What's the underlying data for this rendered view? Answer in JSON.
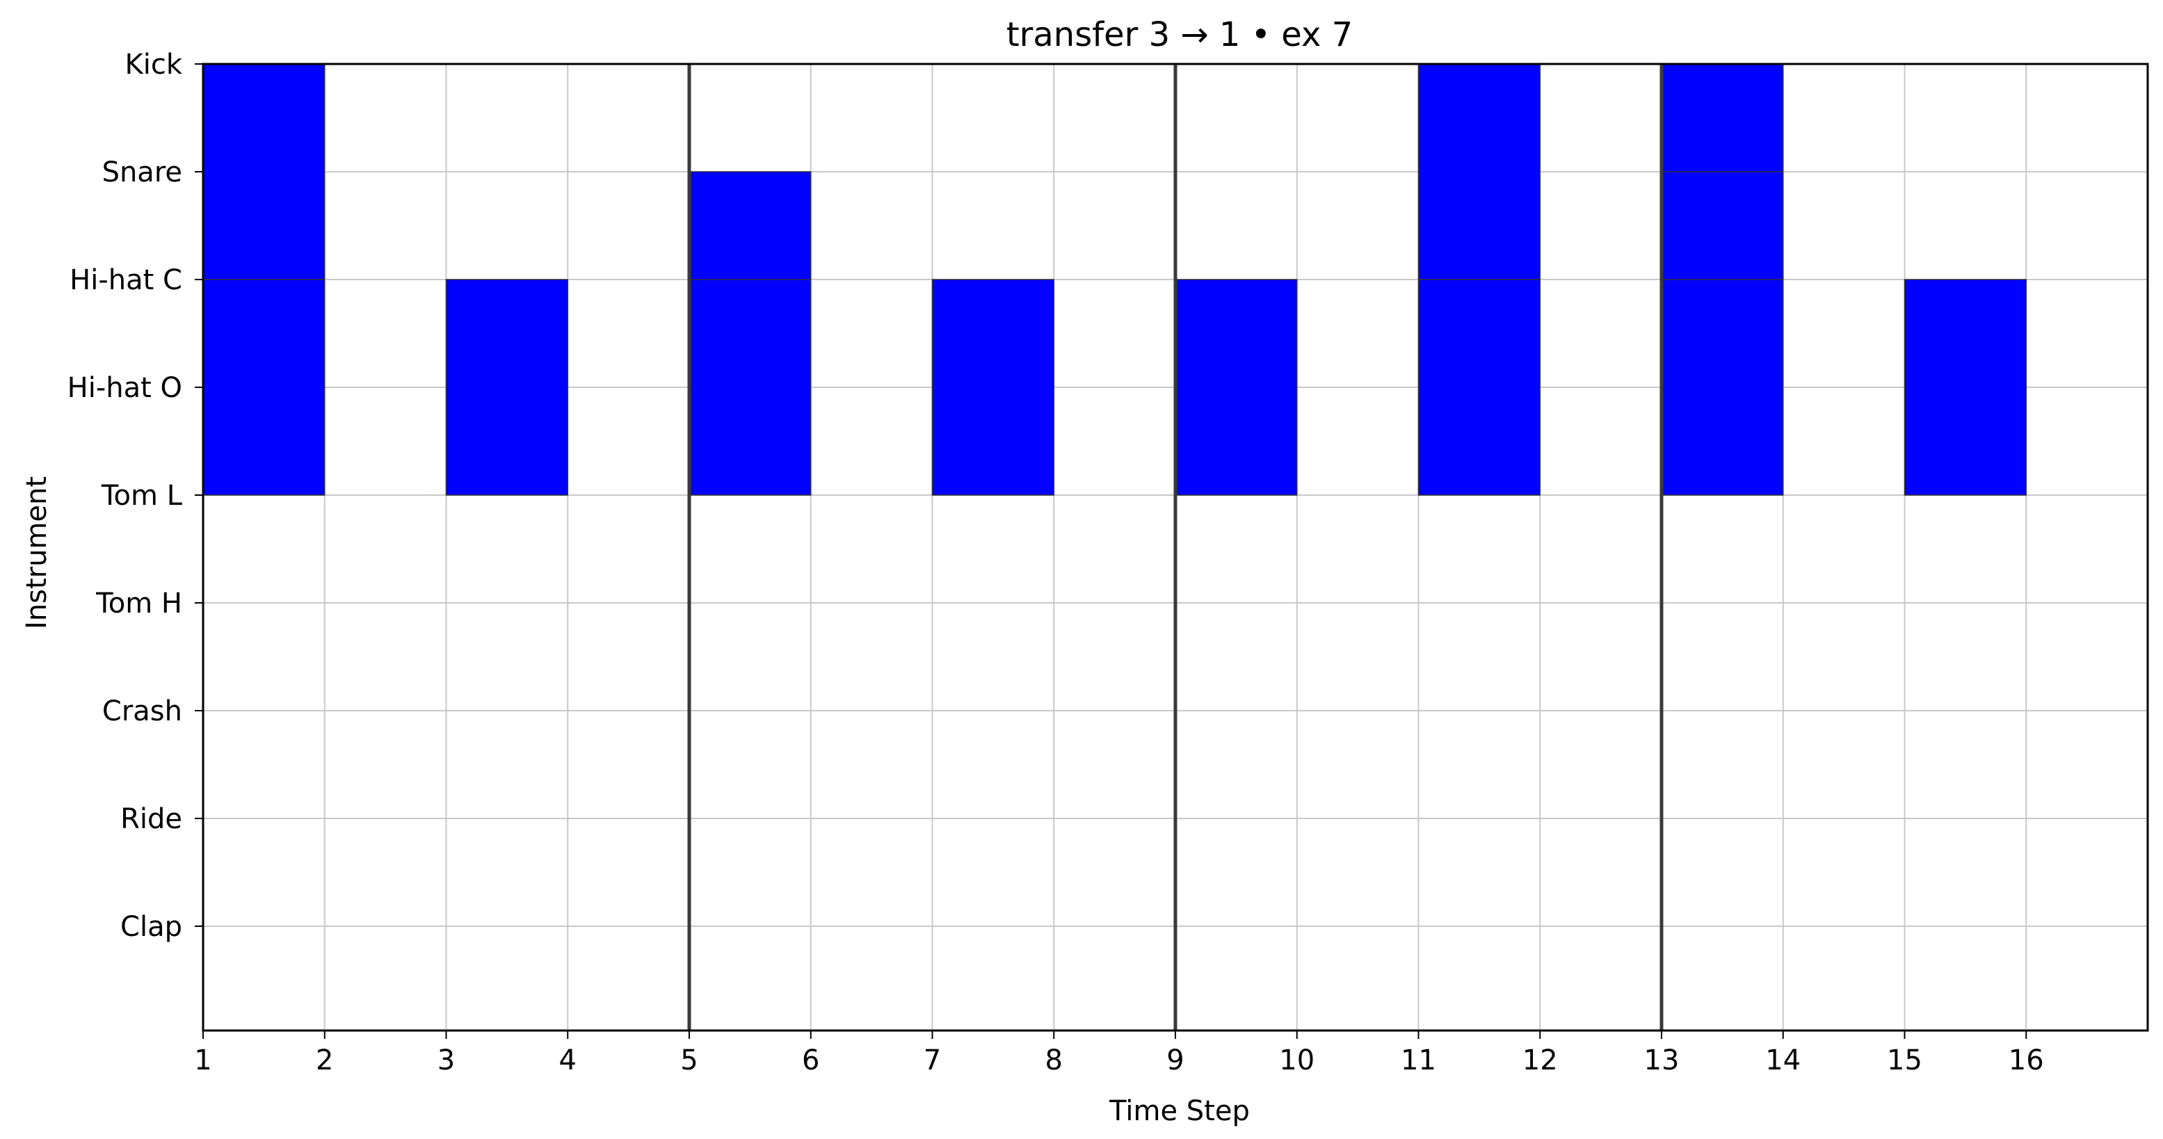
{
  "chart_data": {
    "type": "heatmap",
    "title": "transfer 3 → 1 • ex 7",
    "xlabel": "Time Step",
    "ylabel": "Instrument",
    "x_ticks": [
      1,
      2,
      3,
      4,
      5,
      6,
      7,
      8,
      9,
      10,
      11,
      12,
      13,
      14,
      15,
      16
    ],
    "xlim": [
      1,
      17
    ],
    "instruments": [
      "Kick",
      "Snare",
      "Hi-hat C",
      "Hi-hat O",
      "Tom L",
      "Tom H",
      "Crash",
      "Ride",
      "Clap"
    ],
    "bar_lines": [
      5,
      9,
      13
    ],
    "grid": true,
    "hit_color": "#0000ff",
    "hits": [
      {
        "instrument": "Kick",
        "step": 1
      },
      {
        "instrument": "Kick",
        "step": 11
      },
      {
        "instrument": "Kick",
        "step": 13
      },
      {
        "instrument": "Snare",
        "step": 5
      },
      {
        "instrument": "Snare",
        "step": 13
      },
      {
        "instrument": "Hi-hat C",
        "step": 1
      },
      {
        "instrument": "Hi-hat C",
        "step": 3
      },
      {
        "instrument": "Hi-hat C",
        "step": 5
      },
      {
        "instrument": "Hi-hat C",
        "step": 7
      },
      {
        "instrument": "Hi-hat C",
        "step": 9
      },
      {
        "instrument": "Hi-hat C",
        "step": 11
      },
      {
        "instrument": "Hi-hat C",
        "step": 13
      },
      {
        "instrument": "Hi-hat C",
        "step": 15
      }
    ]
  }
}
